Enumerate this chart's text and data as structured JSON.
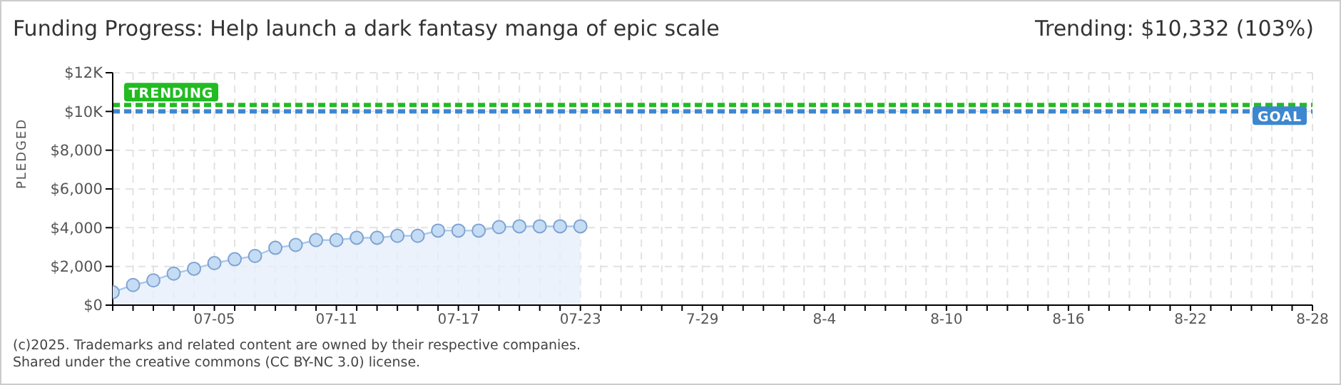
{
  "chart_data": {
    "type": "area",
    "title": "Funding Progress: Help launch a dark fantasy manga of epic scale",
    "subtitle": "Trending: $10,332 (103%)",
    "ylabel": "PLEDGED",
    "x": [
      "2025-06-30",
      "2025-07-01",
      "2025-07-02",
      "2025-07-03",
      "2025-07-04",
      "2025-07-05",
      "2025-07-06",
      "2025-07-07",
      "2025-07-08",
      "2025-07-09",
      "2025-07-10",
      "2025-07-11",
      "2025-07-12",
      "2025-07-13",
      "2025-07-14",
      "2025-07-15",
      "2025-07-16",
      "2025-07-17",
      "2025-07-18",
      "2025-07-19",
      "2025-07-20",
      "2025-07-21",
      "2025-07-22",
      "2025-07-23"
    ],
    "series": [
      {
        "color": "#a9c8ee",
        "values": [
          670,
          1040,
          1280,
          1630,
          1880,
          2170,
          2370,
          2540,
          2960,
          3110,
          3360,
          3360,
          3480,
          3480,
          3580,
          3580,
          3850,
          3850,
          3850,
          4030,
          4070,
          4070,
          4070,
          4070
        ]
      }
    ],
    "marker": "circle",
    "grid": true,
    "legend": false,
    "ylim": [
      0,
      12000
    ],
    "yticks": [
      {
        "value": 0,
        "label": "$0"
      },
      {
        "value": 2000,
        "label": "$2,000"
      },
      {
        "value": 4000,
        "label": "$4,000"
      },
      {
        "value": 6000,
        "label": "$6,000"
      },
      {
        "value": 8000,
        "label": "$8,000"
      },
      {
        "value": 10000,
        "label": "$10K"
      },
      {
        "value": 12000,
        "label": "$12K"
      }
    ],
    "xlim": [
      "2025-06-30",
      "2025-08-28"
    ],
    "xticks": [
      {
        "value": "2025-06-30",
        "label": null
      },
      {
        "value": "2025-07-01",
        "label": null
      },
      {
        "value": "2025-07-02",
        "label": null
      },
      {
        "value": "2025-07-03",
        "label": null
      },
      {
        "value": "2025-07-04",
        "label": null
      },
      {
        "value": "2025-07-05",
        "label": "07-05"
      },
      {
        "value": "2025-07-06",
        "label": null
      },
      {
        "value": "2025-07-07",
        "label": null
      },
      {
        "value": "2025-07-08",
        "label": null
      },
      {
        "value": "2025-07-09",
        "label": null
      },
      {
        "value": "2025-07-10",
        "label": null
      },
      {
        "value": "2025-07-11",
        "label": "07-11"
      },
      {
        "value": "2025-07-12",
        "label": null
      },
      {
        "value": "2025-07-13",
        "label": null
      },
      {
        "value": "2025-07-14",
        "label": null
      },
      {
        "value": "2025-07-15",
        "label": null
      },
      {
        "value": "2025-07-16",
        "label": null
      },
      {
        "value": "2025-07-17",
        "label": "07-17"
      },
      {
        "value": "2025-07-18",
        "label": null
      },
      {
        "value": "2025-07-19",
        "label": null
      },
      {
        "value": "2025-07-20",
        "label": null
      },
      {
        "value": "2025-07-21",
        "label": null
      },
      {
        "value": "2025-07-22",
        "label": null
      },
      {
        "value": "2025-07-23",
        "label": "07-23"
      },
      {
        "value": "2025-07-24",
        "label": null
      },
      {
        "value": "2025-07-25",
        "label": null
      },
      {
        "value": "2025-07-26",
        "label": null
      },
      {
        "value": "2025-07-27",
        "label": null
      },
      {
        "value": "2025-07-28",
        "label": null
      },
      {
        "value": "2025-07-29",
        "label": "7-29"
      },
      {
        "value": "2025-07-30",
        "label": null
      },
      {
        "value": "2025-07-31",
        "label": null
      },
      {
        "value": "2025-08-01",
        "label": null
      },
      {
        "value": "2025-08-02",
        "label": null
      },
      {
        "value": "2025-08-03",
        "label": null
      },
      {
        "value": "2025-08-04",
        "label": "8-4"
      },
      {
        "value": "2025-08-05",
        "label": null
      },
      {
        "value": "2025-08-06",
        "label": null
      },
      {
        "value": "2025-08-07",
        "label": null
      },
      {
        "value": "2025-08-08",
        "label": null
      },
      {
        "value": "2025-08-09",
        "label": null
      },
      {
        "value": "2025-08-10",
        "label": "8-10"
      },
      {
        "value": "2025-08-11",
        "label": null
      },
      {
        "value": "2025-08-12",
        "label": null
      },
      {
        "value": "2025-08-13",
        "label": null
      },
      {
        "value": "2025-08-14",
        "label": null
      },
      {
        "value": "2025-08-15",
        "label": null
      },
      {
        "value": "2025-08-16",
        "label": "8-16"
      },
      {
        "value": "2025-08-17",
        "label": null
      },
      {
        "value": "2025-08-18",
        "label": null
      },
      {
        "value": "2025-08-19",
        "label": null
      },
      {
        "value": "2025-08-20",
        "label": null
      },
      {
        "value": "2025-08-21",
        "label": null
      },
      {
        "value": "2025-08-22",
        "label": "8-22"
      },
      {
        "value": "2025-08-23",
        "label": null
      },
      {
        "value": "2025-08-24",
        "label": null
      },
      {
        "value": "2025-08-25",
        "label": null
      },
      {
        "value": "2025-08-26",
        "label": null
      },
      {
        "value": "2025-08-27",
        "label": null
      },
      {
        "value": "2025-08-28",
        "label": "8-28"
      }
    ],
    "ref_lines": [
      {
        "axis": "y",
        "value": 10332,
        "label": "TRENDING",
        "color": "#22bb22",
        "line_style": "dashed"
      },
      {
        "axis": "y",
        "value": 10000,
        "label": "GOAL",
        "color": "#3d87d0",
        "line_style": "dashed"
      }
    ],
    "annotations": [
      "(c)2025. Trademarks and related content are owned by their respective companies.",
      "Shared under the creative commons (CC BY-NC 3.0) license."
    ]
  }
}
